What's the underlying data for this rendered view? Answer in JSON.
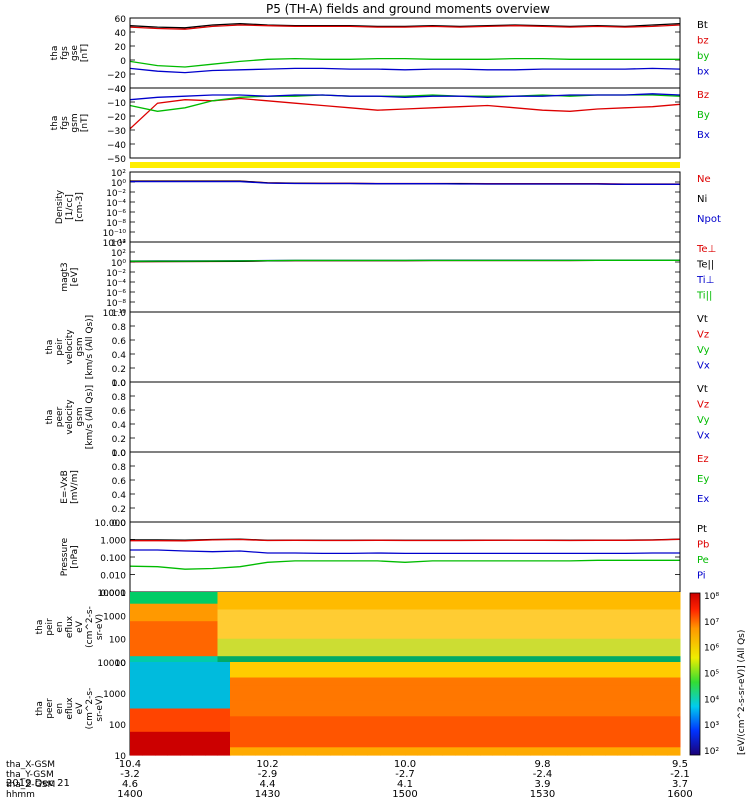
{
  "title": "P5 (TH-A) fields and ground moments overview",
  "date_label": "2019 Dec 21",
  "chart_data": [
    {
      "panel": "fgs_gse",
      "type": "line",
      "ylabel": [
        "tha",
        "fgs",
        "gse",
        "[nT]"
      ],
      "yticks": [
        "60",
        "40",
        "20",
        "0",
        "−20",
        "−40"
      ],
      "ylim": [
        -40,
        60
      ],
      "legend": [
        "Bt",
        "bz",
        "by",
        "bx"
      ],
      "series": [
        {
          "name": "Bt",
          "color": "#000000",
          "values": [
            49,
            47,
            46,
            50,
            52,
            50,
            49,
            49,
            49,
            48,
            48,
            49,
            48,
            49,
            50,
            49,
            48,
            49,
            48,
            50,
            52
          ]
        },
        {
          "name": "bz",
          "color": "#dd0000",
          "values": [
            47,
            45,
            44,
            48,
            50,
            49,
            48,
            48,
            48,
            47,
            47,
            48,
            47,
            48,
            49,
            48,
            47,
            48,
            47,
            48,
            50
          ]
        },
        {
          "name": "by",
          "color": "#00bb00",
          "values": [
            -2,
            -8,
            -10,
            -6,
            -2,
            1,
            2,
            1,
            1,
            2,
            2,
            1,
            1,
            1,
            2,
            2,
            1,
            1,
            1,
            1,
            1
          ]
        },
        {
          "name": "bx",
          "color": "#0000cc",
          "values": [
            -12,
            -16,
            -18,
            -15,
            -14,
            -13,
            -12,
            -12,
            -13,
            -13,
            -14,
            -13,
            -13,
            -14,
            -14,
            -13,
            -13,
            -13,
            -13,
            -12,
            -13
          ]
        }
      ]
    },
    {
      "panel": "fgs_gsm",
      "type": "line",
      "ylabel": [
        "tha",
        "fgs",
        "gsm",
        "[nT]"
      ],
      "yticks": [
        "0",
        "−10",
        "−20",
        "−30",
        "−40",
        "−50"
      ],
      "ylim": [
        -55,
        5
      ],
      "legend": [
        "Bz",
        "By",
        "Bx"
      ],
      "series": [
        {
          "name": "Bz",
          "color": "#dd0000",
          "values": [
            -30,
            -8,
            -5,
            -6,
            -4,
            -6,
            -8,
            -10,
            -12,
            -14,
            -13,
            -12,
            -11,
            -10,
            -12,
            -14,
            -15,
            -13,
            -12,
            -11,
            -9
          ]
        },
        {
          "name": "By",
          "color": "#00bb00",
          "values": [
            -10,
            -15,
            -12,
            -6,
            -3,
            -2,
            -2,
            -1,
            -2,
            -2,
            -2,
            -1,
            -2,
            -2,
            -2,
            -1,
            -2,
            -1,
            -1,
            -1,
            -2
          ]
        },
        {
          "name": "Bx",
          "color": "#0000cc",
          "values": [
            -5,
            -3,
            -2,
            -1,
            -1,
            -2,
            -1,
            -1,
            -2,
            -2,
            -3,
            -2,
            -2,
            -3,
            -2,
            -2,
            -1,
            -1,
            -1,
            0,
            -1
          ]
        }
      ]
    },
    {
      "panel": "density",
      "type": "line",
      "ylabel": [
        "Density",
        "[1/cc]",
        "[cm-3]"
      ],
      "yticks": [
        "10²",
        "10⁰",
        "10⁻²",
        "10⁻⁴",
        "10⁻⁶",
        "10⁻⁸",
        "10⁻¹⁰",
        "10⁻¹²"
      ],
      "ylim_log10": [
        -12,
        2
      ],
      "legend": [
        "Ne",
        "Ni",
        "Npot"
      ],
      "series": [
        {
          "name": "Ne",
          "color": "#dd0000",
          "values": [
            1.6,
            1.6,
            1.55,
            1.6,
            1.6,
            0.7,
            0.6,
            0.55,
            0.55,
            0.5,
            0.5,
            0.5,
            0.5,
            0.45,
            0.45,
            0.45,
            0.45,
            0.45,
            0.4,
            0.4,
            0.4
          ]
        },
        {
          "name": "Ni",
          "color": "#000000",
          "values": [
            1.5,
            1.5,
            1.5,
            1.5,
            1.5,
            0.65,
            0.55,
            0.5,
            0.5,
            0.45,
            0.45,
            0.45,
            0.45,
            0.4,
            0.4,
            0.4,
            0.4,
            0.4,
            0.35,
            0.35,
            0.35
          ]
        },
        {
          "name": "Npot",
          "color": "#0000cc",
          "values": [
            1.2,
            1.2,
            1.2,
            1.2,
            1.2,
            0.6,
            0.5,
            0.5,
            0.5,
            0.45,
            0.45,
            0.45,
            0.4,
            0.4,
            0.4,
            0.4,
            0.4,
            0.4,
            0.35,
            0.35,
            0.35
          ]
        }
      ]
    },
    {
      "panel": "temperature",
      "type": "line",
      "ylabel": [
        "magt3",
        "[eV]"
      ],
      "yticks": [
        "10⁴",
        "10²",
        "10⁰",
        "10⁻²",
        "10⁻⁴",
        "10⁻⁶",
        "10⁻⁸",
        "10⁻¹⁰"
      ],
      "ylim_log10": [
        -10,
        4.3
      ],
      "legend": [
        "Te⊥",
        "Te||",
        "Ti⊥",
        "Ti||"
      ],
      "series": [
        {
          "name": "Te⊥",
          "color": "#dd0000",
          "values": [
            1.9,
            2.0,
            2.1,
            2.1,
            2.2,
            2.8,
            3.1,
            3.2,
            3.2,
            3.2,
            3.1,
            3.3,
            3.3,
            3.3,
            3.3,
            3.3,
            3.3,
            3.4,
            3.4,
            3.4,
            3.4
          ]
        },
        {
          "name": "Te||",
          "color": "#000000",
          "values": [
            2.0,
            2.1,
            2.1,
            2.2,
            2.2,
            2.8,
            3.1,
            3.2,
            3.2,
            3.2,
            3.1,
            3.3,
            3.3,
            3.3,
            3.3,
            3.3,
            3.3,
            3.4,
            3.4,
            3.4,
            3.4
          ]
        },
        {
          "name": "Ti⊥",
          "color": "#0000cc",
          "values": [
            2.6,
            2.7,
            2.7,
            2.8,
            2.9,
            3.3,
            3.5,
            3.5,
            3.5,
            3.5,
            3.5,
            3.6,
            3.6,
            3.6,
            3.6,
            3.6,
            3.6,
            3.7,
            3.7,
            3.7,
            3.7
          ]
        },
        {
          "name": "Ti||",
          "color": "#00bb00",
          "values": [
            2.4,
            2.5,
            2.5,
            2.6,
            2.7,
            3.2,
            3.4,
            3.4,
            3.4,
            3.4,
            3.4,
            3.5,
            3.5,
            3.5,
            3.5,
            3.5,
            3.5,
            3.6,
            3.6,
            3.6,
            3.6
          ]
        }
      ]
    },
    {
      "panel": "peir_velocity",
      "type": "line",
      "ylabel": [
        "tha",
        "peir",
        "velocity",
        "gsm",
        "[km/s (All Qs)]"
      ],
      "yticks": [
        "1.0",
        "0.8",
        "0.6",
        "0.4",
        "0.2",
        "0.0"
      ],
      "ylim": [
        0,
        1
      ],
      "legend": [
        "Vt",
        "Vz",
        "Vy",
        "Vx"
      ],
      "series": []
    },
    {
      "panel": "peer_velocity",
      "type": "line",
      "ylabel": [
        "tha",
        "peer",
        "velocity",
        "gsm",
        "[km/s (All Qs)]"
      ],
      "yticks": [
        "1.0",
        "0.8",
        "0.6",
        "0.4",
        "0.2",
        "0.0"
      ],
      "ylim": [
        0,
        1
      ],
      "legend": [
        "Vt",
        "Vz",
        "Vy",
        "Vx"
      ],
      "series": []
    },
    {
      "panel": "efield",
      "type": "line",
      "ylabel": [
        "E=-VxB",
        "[mV/m]"
      ],
      "yticks": [
        "1.0",
        "0.8",
        "0.6",
        "0.4",
        "0.2",
        "0.0"
      ],
      "ylim": [
        0,
        1
      ],
      "legend": [
        "Ez",
        "Ey",
        "Ex"
      ],
      "series": []
    },
    {
      "panel": "pressure",
      "type": "line",
      "ylabel": [
        "Pressure",
        "[nPa]"
      ],
      "yticks": [
        "10.000",
        "1.000",
        "0.100",
        "0.010",
        "0.001"
      ],
      "ylim_log10": [
        -3,
        1
      ],
      "legend": [
        "Pt",
        "Pb",
        "Pe",
        "Pi"
      ],
      "series": [
        {
          "name": "Pt",
          "color": "#000000",
          "values": [
            0.95,
            0.95,
            0.93,
            1.0,
            1.05,
            0.9,
            0.92,
            0.9,
            0.9,
            0.92,
            0.9,
            0.9,
            0.9,
            0.92,
            0.93,
            0.92,
            0.9,
            0.92,
            0.92,
            0.95,
            1.05
          ]
        },
        {
          "name": "Pb",
          "color": "#dd0000",
          "values": [
            0.85,
            0.85,
            0.84,
            0.95,
            1.0,
            0.88,
            0.9,
            0.88,
            0.88,
            0.9,
            0.88,
            0.88,
            0.88,
            0.9,
            0.91,
            0.9,
            0.88,
            0.9,
            0.9,
            0.93,
            1.02
          ]
        },
        {
          "name": "Pe",
          "color": "#00bb00",
          "values": [
            0.03,
            0.028,
            0.02,
            0.022,
            0.028,
            0.05,
            0.06,
            0.06,
            0.06,
            0.06,
            0.05,
            0.06,
            0.06,
            0.06,
            0.06,
            0.06,
            0.06,
            0.065,
            0.065,
            0.065,
            0.065
          ]
        },
        {
          "name": "Pi",
          "color": "#0000cc",
          "values": [
            0.25,
            0.25,
            0.22,
            0.2,
            0.22,
            0.17,
            0.17,
            0.16,
            0.16,
            0.17,
            0.16,
            0.16,
            0.16,
            0.16,
            0.16,
            0.16,
            0.16,
            0.16,
            0.16,
            0.17,
            0.17
          ]
        }
      ]
    },
    {
      "panel": "peir_eflux",
      "type": "heatmap",
      "ylabel": [
        "tha",
        "peir",
        "en",
        "eflux",
        "eV",
        "(cm^2-s-",
        "sr-eV)"
      ],
      "yticks": [
        "10000",
        "1000",
        "100",
        "10"
      ]
    },
    {
      "panel": "peer_eflux",
      "type": "heatmap",
      "ylabel": [
        "tha",
        "peer",
        "en",
        "eflux",
        "eV",
        "(cm^2-s-",
        "sr-eV)"
      ],
      "yticks": [
        "10000",
        "1000",
        "100",
        "10"
      ]
    }
  ],
  "colorbar": {
    "label": "[eV/(cm^2-s-sr-eV)] (All Qs)",
    "ticks": [
      "10⁸",
      "10⁷",
      "10⁶",
      "10⁵",
      "10⁴",
      "10³",
      "10²"
    ]
  },
  "time_axis": {
    "rows": [
      {
        "label": "tha_X-GSM",
        "values": [
          "10.4",
          "10.2",
          "10.0",
          "9.8",
          "9.5"
        ]
      },
      {
        "label": "tha_Y-GSM",
        "values": [
          "-3.2",
          "-2.9",
          "-2.7",
          "-2.4",
          "-2.1"
        ]
      },
      {
        "label": "tha_Z-GSM",
        "values": [
          "4.6",
          "4.4",
          "4.1",
          "3.9",
          "3.7"
        ]
      },
      {
        "label": "hhmm",
        "values": [
          "1400",
          "1430",
          "1500",
          "1530",
          "1600"
        ]
      }
    ]
  }
}
